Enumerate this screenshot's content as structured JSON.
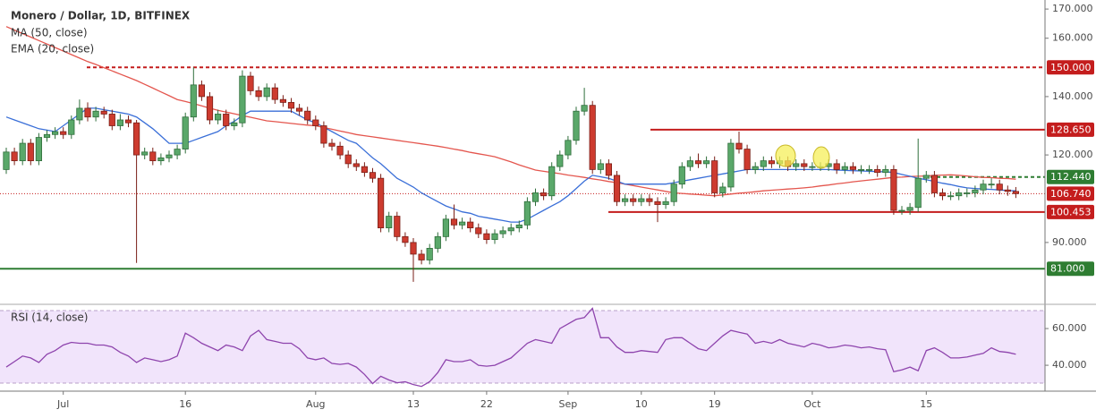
{
  "chart_data": [
    {
      "type": "candlestick",
      "title": "Monero / Dollar, 1D, BITFINEX",
      "up_color": "#5aa86a",
      "down_color": "#cd3b2f",
      "up_border": "#2f6e3b",
      "down_border": "#7a1f17",
      "categories": [
        null,
        null,
        null,
        null,
        null,
        null,
        null,
        "Jul",
        null,
        null,
        null,
        null,
        null,
        null,
        null,
        null,
        null,
        null,
        null,
        null,
        null,
        null,
        "16",
        null,
        null,
        null,
        null,
        null,
        null,
        null,
        null,
        null,
        null,
        null,
        null,
        null,
        null,
        null,
        "Aug",
        null,
        null,
        null,
        null,
        null,
        null,
        null,
        null,
        null,
        null,
        null,
        "13",
        null,
        null,
        null,
        null,
        null,
        null,
        null,
        null,
        "22",
        null,
        null,
        null,
        null,
        null,
        null,
        null,
        null,
        null,
        "Sep",
        null,
        null,
        null,
        null,
        null,
        null,
        null,
        null,
        "10",
        null,
        null,
        null,
        null,
        null,
        null,
        null,
        null,
        "19",
        null,
        null,
        null,
        null,
        null,
        null,
        null,
        null,
        null,
        null,
        null,
        "Oct",
        null,
        null,
        null,
        null,
        null,
        null,
        null,
        null,
        null,
        null,
        null,
        null,
        null,
        "15",
        null,
        null,
        null,
        null,
        null,
        null,
        null,
        null,
        null,
        null,
        null
      ],
      "open": [
        115,
        121,
        118,
        124,
        118,
        126,
        127,
        128,
        127,
        132,
        136,
        133,
        135,
        134,
        130,
        132,
        131,
        120,
        121,
        118,
        119,
        120,
        122,
        133,
        144,
        140,
        132,
        134,
        130,
        131,
        147,
        142,
        140,
        143,
        139,
        138,
        136,
        135,
        132,
        130,
        124,
        123,
        120,
        117,
        116,
        114,
        112,
        95,
        99,
        92,
        90,
        86,
        84,
        88,
        92,
        98,
        96,
        97,
        95,
        93,
        91,
        93,
        94,
        95,
        96,
        104,
        107,
        106,
        116,
        120,
        125,
        135,
        137,
        115,
        117,
        113,
        104,
        105,
        104,
        105,
        104,
        103,
        104,
        110,
        116,
        118,
        117,
        118,
        107,
        109,
        124,
        122,
        115,
        116,
        118,
        117,
        118,
        116,
        117,
        116,
        116,
        116,
        117,
        115,
        116,
        115,
        115,
        115,
        114,
        115,
        101,
        101,
        102,
        112,
        113,
        107,
        106,
        106,
        107,
        107,
        108,
        110,
        110,
        108,
        107.5
      ],
      "high": [
        122.5,
        122.5,
        125.5,
        125.5,
        127.5,
        128.5,
        129.5,
        129.5,
        133.5,
        139,
        138,
        136.5,
        136.5,
        135.5,
        134,
        133.5,
        132,
        122.5,
        122.5,
        120.5,
        121.5,
        123.5,
        134.5,
        150,
        145.5,
        141.5,
        135.5,
        135.5,
        132.5,
        149,
        148.5,
        143.5,
        144.5,
        144.5,
        140.5,
        139.5,
        137.5,
        136.5,
        133.5,
        131.5,
        125.5,
        124.5,
        121.5,
        118.5,
        117.5,
        115.5,
        113.5,
        100.5,
        100.5,
        93.5,
        91.5,
        87.5,
        89.5,
        93.5,
        99.5,
        103,
        98.5,
        98.5,
        96.5,
        94.5,
        94.5,
        95.5,
        96.5,
        97.5,
        105.5,
        108.5,
        108.5,
        117.5,
        121.5,
        126.5,
        136.5,
        143,
        138.5,
        118.5,
        118.5,
        114.5,
        106.5,
        106.5,
        106.5,
        106.5,
        105.5,
        105.5,
        111.5,
        117.5,
        119.5,
        120.5,
        119.5,
        119.5,
        110.5,
        125.5,
        128,
        123.5,
        117.5,
        119.5,
        119.5,
        119.5,
        119.5,
        118.5,
        118.5,
        117.5,
        117.5,
        118.5,
        118.5,
        117.5,
        117.5,
        116.5,
        116.5,
        116.5,
        116.5,
        116.5,
        102.5,
        103.5,
        125.6,
        114.5,
        114.5,
        108.5,
        107.5,
        108.5,
        108.5,
        109.5,
        111.5,
        112,
        111.5,
        109.5,
        109
      ],
      "low": [
        113.5,
        116.5,
        116.5,
        116.5,
        116.5,
        124.5,
        125.5,
        125.5,
        125.5,
        130.5,
        131.5,
        131.5,
        132.5,
        128.5,
        128.5,
        129.5,
        83,
        118.5,
        116.5,
        116.5,
        117.5,
        118.5,
        120.5,
        131.5,
        138.5,
        130.5,
        130.5,
        128.5,
        128.5,
        129.5,
        140.5,
        138.5,
        138.5,
        137.5,
        136.5,
        134.5,
        133.5,
        130.5,
        128.5,
        122.5,
        121.5,
        118.5,
        115.5,
        114.5,
        112.5,
        110.5,
        93.5,
        93.5,
        90.5,
        88.5,
        76.5,
        82.5,
        82.5,
        86.5,
        90.5,
        94.5,
        94.5,
        93.5,
        91.5,
        89.5,
        89.5,
        91.5,
        92.5,
        93.5,
        94.5,
        102.5,
        104.5,
        104.5,
        114.5,
        118.5,
        123.5,
        133.5,
        113.5,
        113.5,
        111.5,
        102.5,
        102.5,
        102.5,
        102.5,
        102.5,
        97,
        101.5,
        102.5,
        108.5,
        114.5,
        115.5,
        115.5,
        105.5,
        105.5,
        107.5,
        120.5,
        113.5,
        113.5,
        114.5,
        115.5,
        115.5,
        114.5,
        114.5,
        114.5,
        114.5,
        114.5,
        114.5,
        113.5,
        113.5,
        113.5,
        113.5,
        113.5,
        112.5,
        112.5,
        99.5,
        99.5,
        99.5,
        100.5,
        110.5,
        105.5,
        104.5,
        104.5,
        104.5,
        105.5,
        105.5,
        106.5,
        108.5,
        106.5,
        106,
        105.24
      ],
      "close": [
        121,
        118,
        124,
        118,
        126,
        127,
        128,
        127,
        132,
        136,
        133,
        135,
        134,
        130,
        132,
        131,
        120,
        121,
        118,
        119,
        120,
        122,
        133,
        144,
        140,
        132,
        134,
        130,
        131,
        147,
        142,
        140,
        143,
        139,
        138,
        136,
        135,
        132,
        130,
        124,
        123,
        120,
        117,
        116,
        114,
        112,
        95,
        99,
        92,
        90,
        86,
        84,
        88,
        92,
        98,
        96,
        97,
        95,
        93,
        91,
        93,
        94,
        95,
        96,
        104,
        107,
        106,
        116,
        120,
        125,
        135,
        137,
        115,
        117,
        113,
        104,
        105,
        104,
        105,
        104,
        103,
        104,
        110,
        116,
        118,
        117,
        118,
        107,
        109,
        124,
        122,
        115,
        116,
        118,
        117,
        118,
        116,
        117,
        116,
        116,
        116,
        117,
        115,
        116,
        115,
        115,
        115,
        114,
        115,
        101,
        101,
        102,
        112,
        113,
        107,
        106,
        106,
        107,
        107,
        108,
        110,
        110,
        108,
        107.5,
        106.74
      ],
      "overlays": [
        {
          "name": "MA (50, close)",
          "color": "#e4564e",
          "values": [
            164,
            162.8,
            161.6,
            160.4,
            159.2,
            158,
            156.8,
            155.6,
            154.4,
            153.2,
            152,
            151,
            149.9,
            148.8,
            147.7,
            146.6,
            145.5,
            144.2,
            142.9,
            141.6,
            140.3,
            139,
            138.3,
            137.6,
            136.8,
            136,
            135.3,
            134.7,
            134.1,
            133.5,
            132.9,
            132.3,
            131.7,
            131.4,
            131.1,
            130.8,
            130.5,
            130.2,
            130,
            129.4,
            128.8,
            128.2,
            127.6,
            127,
            126.6,
            126.2,
            125.8,
            125.4,
            125,
            124.6,
            124.2,
            123.8,
            123.4,
            123,
            122.5,
            122,
            121.5,
            120.9,
            120.4,
            119.9,
            119.4,
            118.5,
            117.6,
            116.6,
            115.7,
            114.8,
            114.4,
            114,
            113.6,
            113.1,
            112.7,
            112.3,
            111.8,
            111.4,
            110.9,
            110.5,
            110,
            109.5,
            109,
            108.5,
            108,
            107.5,
            107,
            106.8,
            106.6,
            106.4,
            106.2,
            106,
            106.3,
            106.6,
            106.9,
            107.1,
            107.4,
            107.7,
            107.9,
            108.1,
            108.3,
            108.5,
            108.7,
            109,
            109.4,
            109.7,
            110.1,
            110.4,
            110.8,
            111.1,
            111.4,
            111.7,
            112,
            112.3,
            112.4,
            112.6,
            112.7,
            112.8,
            113,
            113.1,
            113.2,
            113,
            112.8,
            112.5,
            112.3,
            112.2,
            112,
            111.9,
            111.7
          ]
        },
        {
          "name": "EMA (20, close)",
          "color": "#3a6fd8",
          "values": [
            133,
            132,
            131,
            130,
            129,
            128.5,
            128,
            130,
            132,
            134,
            136,
            136,
            135.5,
            135,
            134.5,
            134,
            133,
            131,
            129,
            126.5,
            124,
            124,
            124,
            125,
            126,
            127,
            128,
            130,
            131.5,
            133.5,
            135,
            135,
            135,
            135,
            135,
            135,
            133.5,
            132,
            131,
            129.5,
            128,
            126.5,
            125,
            124,
            121.5,
            119,
            117,
            114.5,
            112,
            110.5,
            109,
            107,
            105.5,
            104,
            102.5,
            101.5,
            100.5,
            100,
            99,
            98.5,
            98,
            97.5,
            97,
            97,
            98,
            99.5,
            101,
            102.5,
            104,
            106,
            108.5,
            111,
            113,
            112.5,
            112,
            111,
            110,
            110,
            110,
            110,
            110,
            110,
            110.5,
            111,
            111.5,
            112,
            112.5,
            113,
            113.5,
            114,
            114.5,
            115,
            115,
            115,
            115,
            115,
            115,
            115,
            115,
            115,
            115,
            115,
            114.8,
            114.7,
            114.6,
            114.5,
            114.4,
            114.3,
            114.2,
            114,
            113.3,
            112.7,
            112,
            111.5,
            110.9,
            110.3,
            109.8,
            109.2,
            108.7,
            108.5,
            108.3,
            108.2,
            108,
            107.8,
            107.7
          ]
        }
      ],
      "levels": [
        {
          "value": 150,
          "label": "150.000",
          "color": "#c41d1d",
          "style": "dashed"
        },
        {
          "value": 128.65,
          "label": "128.650",
          "color": "#c41d1d",
          "style": "solid"
        },
        {
          "value": 112.44,
          "label": "112.440",
          "color": "#2e7d32",
          "style": "dashed"
        },
        {
          "value": 106.74,
          "label": "106.740",
          "color": "#c41d1d",
          "style": "dotted"
        },
        {
          "value": 100.453,
          "label": "100.453",
          "color": "#c41d1d",
          "style": "solid"
        },
        {
          "value": 81,
          "label": "81.000",
          "color": "#2e7d32",
          "style": "solid"
        }
      ],
      "ylim": [
        68.8,
        173.1
      ],
      "yticks": [
        {
          "value": 170,
          "label": "170.000"
        },
        {
          "value": 160,
          "label": "160.000"
        },
        {
          "value": 140,
          "label": "140.000"
        },
        {
          "value": 120,
          "label": "120.000"
        },
        {
          "value": 90,
          "label": "90.000"
        }
      ]
    },
    {
      "type": "line",
      "series": [
        {
          "name": "RSI (14, close)",
          "color": "#8e44ad",
          "values": [
            39,
            42,
            45,
            44,
            41.5,
            46,
            48,
            51,
            52.5,
            52,
            52,
            51,
            51,
            50,
            47,
            45,
            41.5,
            44,
            43,
            42,
            43,
            45,
            57.5,
            55,
            52,
            50,
            48,
            51,
            50,
            48,
            56,
            59,
            54,
            53,
            52,
            52,
            49,
            44,
            43,
            44,
            41,
            40.5,
            41,
            39,
            35,
            30,
            34,
            32,
            30.5,
            31,
            29.5,
            28.5,
            31,
            36,
            43,
            42,
            42,
            43,
            40,
            39.5,
            40,
            42,
            44,
            48,
            52,
            54,
            53,
            52,
            60,
            62.5,
            65,
            66,
            71,
            55,
            55,
            50,
            47,
            47,
            48,
            47.5,
            47,
            54,
            55,
            55,
            52,
            49,
            48,
            52,
            56,
            59,
            58,
            57,
            52,
            53,
            52,
            54,
            52,
            51,
            50,
            52,
            51,
            49.5,
            50,
            51,
            50.5,
            49.5,
            50,
            49,
            48.5,
            36.5,
            37.5,
            39,
            37,
            48,
            49.5,
            47,
            44,
            44,
            44.5,
            45.5,
            46.5,
            49.5,
            47.5,
            47,
            46
          ]
        }
      ],
      "ylim": [
        25.9,
        73.2
      ],
      "yticks": [
        {
          "value": 60,
          "label": "60.000"
        },
        {
          "value": 40,
          "label": "40.000"
        }
      ]
    }
  ]
}
